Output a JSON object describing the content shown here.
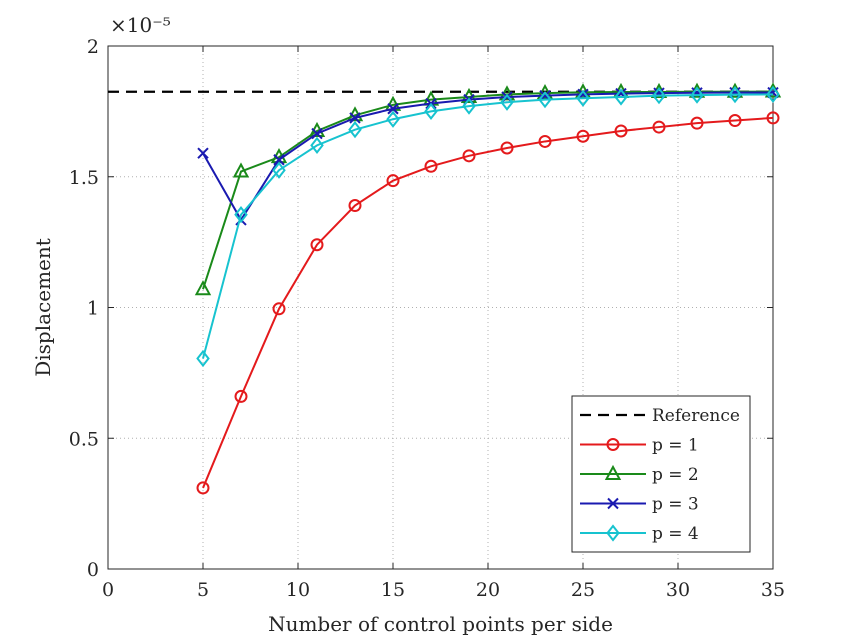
{
  "chart_data": {
    "type": "line",
    "title": "",
    "xlabel": "Number of control points per side",
    "ylabel": "Displacement",
    "y_multiplier_label": "×10⁻⁵",
    "xlim": [
      0,
      35
    ],
    "ylim": [
      0,
      2
    ],
    "xticks": [
      0,
      5,
      10,
      15,
      20,
      25,
      30,
      35
    ],
    "xtick_labels": [
      "0",
      "5",
      "10",
      "15",
      "20",
      "25",
      "30",
      "35"
    ],
    "yticks": [
      0,
      0.5,
      1,
      1.5,
      2
    ],
    "ytick_labels": [
      "0",
      "0.5",
      "1",
      "1.5",
      "2"
    ],
    "grid": true,
    "legend_position": "bottom-right",
    "reference": {
      "name": "Reference",
      "value": 1.825,
      "color": "#000000",
      "style": "dashed"
    },
    "series": [
      {
        "name": "p = 1",
        "color": "#e41a1c",
        "marker": "circle",
        "x": [
          5,
          7,
          9,
          11,
          13,
          15,
          17,
          19,
          21,
          23,
          25,
          27,
          29,
          31,
          33,
          35
        ],
        "values": [
          0.31,
          0.66,
          0.995,
          1.24,
          1.39,
          1.485,
          1.54,
          1.58,
          1.61,
          1.635,
          1.655,
          1.675,
          1.69,
          1.705,
          1.715,
          1.725
        ]
      },
      {
        "name": "p = 2",
        "color": "#1a8a1a",
        "marker": "triangle",
        "x": [
          5,
          7,
          9,
          11,
          13,
          15,
          17,
          19,
          21,
          23,
          25,
          27,
          29,
          31,
          33,
          35
        ],
        "values": [
          1.07,
          1.52,
          1.575,
          1.675,
          1.735,
          1.775,
          1.795,
          1.805,
          1.815,
          1.82,
          1.823,
          1.824,
          1.824,
          1.825,
          1.825,
          1.826
        ]
      },
      {
        "name": "p = 3",
        "color": "#1a1ab0",
        "marker": "x",
        "x": [
          5,
          7,
          9,
          11,
          13,
          15,
          17,
          19,
          21,
          23,
          25,
          27,
          29,
          31,
          33,
          35
        ],
        "values": [
          1.59,
          1.335,
          1.565,
          1.665,
          1.725,
          1.76,
          1.78,
          1.795,
          1.805,
          1.81,
          1.815,
          1.818,
          1.82,
          1.821,
          1.822,
          1.822
        ]
      },
      {
        "name": "p = 4",
        "color": "#17c3cf",
        "marker": "diamond",
        "x": [
          5,
          7,
          9,
          11,
          13,
          15,
          17,
          19,
          21,
          23,
          25,
          27,
          29,
          31,
          33,
          35
        ],
        "values": [
          0.805,
          1.355,
          1.525,
          1.62,
          1.68,
          1.72,
          1.75,
          1.77,
          1.785,
          1.795,
          1.8,
          1.805,
          1.81,
          1.812,
          1.814,
          1.815
        ]
      }
    ]
  }
}
